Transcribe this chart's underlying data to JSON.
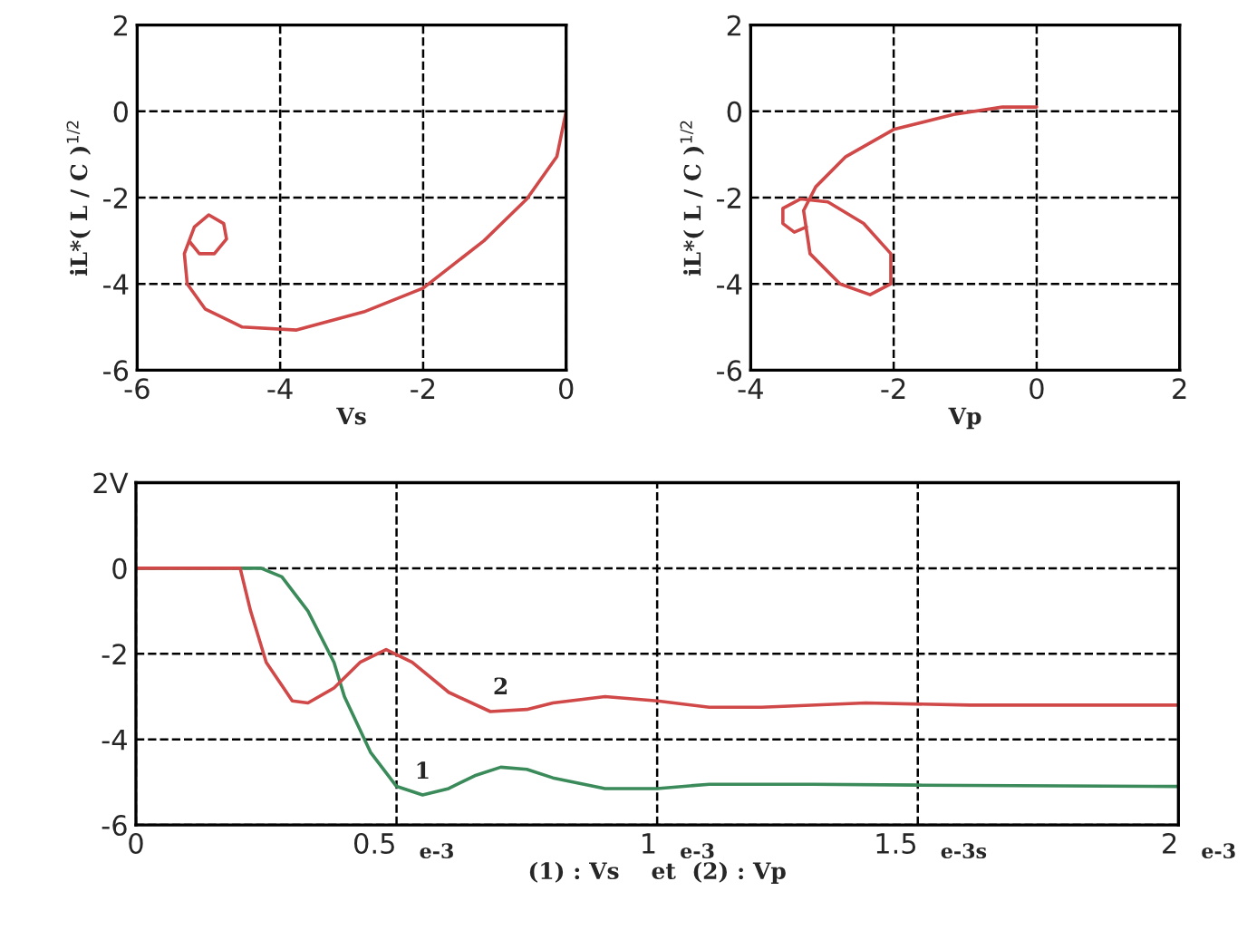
{
  "chart_data": [
    {
      "type": "line",
      "xlabel": "Vs",
      "ylabel": "iL*( L / C )$^{1/2}$",
      "xlim": [
        -6,
        0
      ],
      "ylim": [
        -6,
        2
      ],
      "xticks": [
        -6,
        -4,
        -2,
        0
      ],
      "yticks": [
        -6,
        -4,
        -2,
        0,
        2
      ],
      "grid": true,
      "line_style": "solid",
      "series": [
        {
          "color": "#d04848",
          "x": [
            0,
            -0.13,
            -0.55,
            -1.15,
            -2,
            -2.83,
            -3.77,
            -4.53,
            -5.05,
            -5.3,
            -5.34,
            -5.2,
            -5.0,
            -4.79,
            -4.75,
            -4.92,
            -5.13,
            -5.26,
            -5.23
          ],
          "values": [
            0,
            -1.05,
            -2.03,
            -3.0,
            -4.1,
            -4.65,
            -5.07,
            -5.0,
            -4.58,
            -4.0,
            -3.3,
            -2.68,
            -2.4,
            -2.6,
            -2.96,
            -3.3,
            -3.3,
            -3.03,
            -3.1
          ]
        }
      ]
    },
    {
      "type": "line",
      "xlabel": "Vp",
      "ylabel": "iL*( L / C )$^{1/2}$",
      "xlim": [
        -4,
        2
      ],
      "ylim": [
        -6,
        2
      ],
      "xticks": [
        -4,
        -2,
        0,
        2
      ],
      "yticks": [
        -6,
        -4,
        -2,
        0,
        2
      ],
      "grid": true,
      "line_style": "solid",
      "series": [
        {
          "color": "#d04848",
          "x": [
            0,
            -0.48,
            -1.16,
            -2,
            -2.67,
            -3.09,
            -3.26,
            -3.17,
            -2.75,
            -2.33,
            -2.04,
            -2.04,
            -2.42,
            -2.92,
            -3.3,
            -3.55,
            -3.55,
            -3.39,
            -3.22
          ],
          "values": [
            0.1,
            0.1,
            -0.07,
            -0.42,
            -1.05,
            -1.75,
            -2.3,
            -3.3,
            -4.0,
            -4.25,
            -4.0,
            -3.3,
            -2.6,
            -2.1,
            -2.03,
            -2.25,
            -2.6,
            -2.8,
            -2.68
          ]
        }
      ]
    },
    {
      "type": "line",
      "xlabel": "(1) : Vs    et  (2) : Vp",
      "xlim": [
        0,
        2
      ],
      "ylim": [
        -6,
        2
      ],
      "xticks": [
        0,
        0.5,
        1,
        1.5,
        2
      ],
      "yticks": [
        -6,
        -4,
        -2,
        0,
        {
          "value": 2,
          "label": "2V"
        }
      ],
      "grid": true,
      "line_style": "solid",
      "annotations": [
        {
          "text": "1",
          "x": 0.55,
          "y": -5.3
        },
        {
          "text": "2",
          "x": 0.7,
          "y": -3.33
        },
        "e-3",
        "e-3",
        "e-3s",
        "e-3"
      ],
      "series": [
        {
          "color": "#3a8a5a",
          "x": [
            0,
            0.24,
            0.28,
            0.33,
            0.38,
            0.4,
            0.45,
            0.5,
            0.55,
            0.6,
            0.65,
            0.7,
            0.75,
            0.8,
            0.9,
            1.0,
            1.1,
            1.3,
            1.5,
            2.0
          ],
          "values": [
            0,
            0,
            -0.2,
            -1.0,
            -2.2,
            -3.0,
            -4.3,
            -5.1,
            -5.3,
            -5.15,
            -4.85,
            -4.65,
            -4.7,
            -4.9,
            -5.15,
            -5.15,
            -5.05,
            -5.05,
            -5.07,
            -5.1
          ]
        },
        {
          "color": "#d04848",
          "x": [
            0,
            0.2,
            0.22,
            0.25,
            0.3,
            0.33,
            0.38,
            0.43,
            0.48,
            0.53,
            0.6,
            0.68,
            0.75,
            0.8,
            0.9,
            1.0,
            1.1,
            1.2,
            1.4,
            1.6,
            2.0
          ],
          "values": [
            0,
            0,
            -1.0,
            -2.2,
            -3.1,
            -3.15,
            -2.8,
            -2.2,
            -1.9,
            -2.2,
            -2.9,
            -3.35,
            -3.3,
            -3.15,
            -3.0,
            -3.1,
            -3.25,
            -3.25,
            -3.15,
            -3.2,
            -3.2
          ]
        }
      ]
    }
  ]
}
